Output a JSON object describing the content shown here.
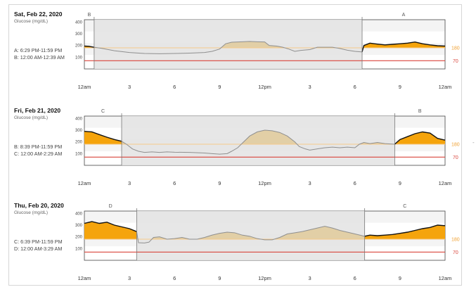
{
  "panels": [
    {
      "date": "Sat, Feb 22, 2020",
      "ylabel": "Glucose (mg/dL)",
      "info": [
        "A: 6:29 PM-11:59 PM",
        "B: 12:00 AM-12:39 AM"
      ],
      "segments": [
        {
          "label": "B",
          "start_hour": 0,
          "end_hour": 0.65,
          "shaded": false
        },
        {
          "label": "",
          "start_hour": 0.65,
          "end_hour": 18.48,
          "shaded": true
        },
        {
          "label": "A",
          "start_hour": 18.48,
          "end_hour": 24,
          "shaded": false
        }
      ],
      "points": [
        [
          0,
          195
        ],
        [
          0.3,
          193
        ],
        [
          0.65,
          185
        ],
        [
          1.2,
          175
        ],
        [
          2,
          155
        ],
        [
          3,
          140
        ],
        [
          4,
          132
        ],
        [
          5,
          130
        ],
        [
          6,
          132
        ],
        [
          7,
          135
        ],
        [
          8,
          140
        ],
        [
          8.5,
          150
        ],
        [
          9,
          170
        ],
        [
          9.4,
          215
        ],
        [
          9.8,
          228
        ],
        [
          10.5,
          232
        ],
        [
          11,
          235
        ],
        [
          11.5,
          232
        ],
        [
          12,
          230
        ],
        [
          12.3,
          200
        ],
        [
          12.8,
          195
        ],
        [
          13.2,
          185
        ],
        [
          13.6,
          170
        ],
        [
          14,
          150
        ],
        [
          14.4,
          158
        ],
        [
          15,
          165
        ],
        [
          15.5,
          185
        ],
        [
          16.5,
          185
        ],
        [
          17,
          175
        ],
        [
          17.5,
          160
        ],
        [
          18,
          150
        ],
        [
          18.48,
          145
        ],
        [
          18.6,
          200
        ],
        [
          19,
          220
        ],
        [
          19.5,
          212
        ],
        [
          20,
          205
        ],
        [
          20.5,
          210
        ],
        [
          21,
          215
        ],
        [
          21.5,
          220
        ],
        [
          22,
          230
        ],
        [
          22.5,
          215
        ],
        [
          23,
          205
        ],
        [
          23.5,
          198
        ],
        [
          24,
          195
        ]
      ]
    },
    {
      "date": "Fri, Feb 21, 2020",
      "ylabel": "Glucose (mg/dL)",
      "info": [
        "B: 8:39 PM-11:59 PM",
        "C: 12:00 AM-2:29 AM"
      ],
      "segments": [
        {
          "label": "C",
          "start_hour": 0,
          "end_hour": 2.48,
          "shaded": false
        },
        {
          "label": "",
          "start_hour": 2.48,
          "end_hour": 20.65,
          "shaded": true
        },
        {
          "label": "B",
          "start_hour": 20.65,
          "end_hour": 24,
          "shaded": false
        }
      ],
      "points": [
        [
          0,
          290
        ],
        [
          0.5,
          285
        ],
        [
          1,
          262
        ],
        [
          1.5,
          240
        ],
        [
          2,
          220
        ],
        [
          2.48,
          205
        ],
        [
          2.8,
          180
        ],
        [
          3.2,
          140
        ],
        [
          3.6,
          120
        ],
        [
          4,
          110
        ],
        [
          4.5,
          115
        ],
        [
          5,
          110
        ],
        [
          5.5,
          115
        ],
        [
          6,
          112
        ],
        [
          7,
          110
        ],
        [
          8,
          105
        ],
        [
          8.5,
          100
        ],
        [
          9,
          95
        ],
        [
          9.5,
          100
        ],
        [
          9.8,
          120
        ],
        [
          10.2,
          150
        ],
        [
          10.6,
          200
        ],
        [
          11,
          250
        ],
        [
          11.5,
          285
        ],
        [
          12,
          300
        ],
        [
          12.5,
          295
        ],
        [
          13,
          280
        ],
        [
          13.5,
          250
        ],
        [
          14,
          200
        ],
        [
          14.3,
          160
        ],
        [
          14.7,
          140
        ],
        [
          15,
          130
        ],
        [
          15.5,
          140
        ],
        [
          16,
          150
        ],
        [
          16.5,
          155
        ],
        [
          17,
          150
        ],
        [
          17.5,
          155
        ],
        [
          18,
          150
        ],
        [
          18.3,
          180
        ],
        [
          18.6,
          195
        ],
        [
          19,
          185
        ],
        [
          19.5,
          195
        ],
        [
          20,
          185
        ],
        [
          20.65,
          180
        ],
        [
          21,
          220
        ],
        [
          21.5,
          245
        ],
        [
          22,
          270
        ],
        [
          22.5,
          285
        ],
        [
          23,
          275
        ],
        [
          23.5,
          230
        ],
        [
          24,
          215
        ]
      ]
    },
    {
      "date": "Thu, Feb 20, 2020",
      "ylabel": "Glucose (mg/dL)",
      "info": [
        "C: 6:39 PM-11:59 PM",
        "D: 12:00 AM-3:29 AM"
      ],
      "segments": [
        {
          "label": "D",
          "start_hour": 0,
          "end_hour": 3.48,
          "shaded": false
        },
        {
          "label": "",
          "start_hour": 3.48,
          "end_hour": 18.65,
          "shaded": true
        },
        {
          "label": "C",
          "start_hour": 18.65,
          "end_hour": 24,
          "shaded": false
        }
      ],
      "points": [
        [
          0,
          315
        ],
        [
          0.5,
          330
        ],
        [
          1,
          315
        ],
        [
          1.5,
          325
        ],
        [
          2,
          300
        ],
        [
          2.5,
          285
        ],
        [
          3,
          270
        ],
        [
          3.48,
          245
        ],
        [
          3.6,
          150
        ],
        [
          4,
          148
        ],
        [
          4.3,
          155
        ],
        [
          4.6,
          195
        ],
        [
          5,
          200
        ],
        [
          5.5,
          180
        ],
        [
          6,
          185
        ],
        [
          6.5,
          195
        ],
        [
          7,
          180
        ],
        [
          7.5,
          180
        ],
        [
          8,
          195
        ],
        [
          8.5,
          215
        ],
        [
          9,
          230
        ],
        [
          9.5,
          240
        ],
        [
          10,
          235
        ],
        [
          10.5,
          215
        ],
        [
          11,
          205
        ],
        [
          11.5,
          185
        ],
        [
          12,
          175
        ],
        [
          12.5,
          175
        ],
        [
          13,
          195
        ],
        [
          13.5,
          225
        ],
        [
          14,
          235
        ],
        [
          14.5,
          245
        ],
        [
          15,
          260
        ],
        [
          15.5,
          275
        ],
        [
          16,
          290
        ],
        [
          16.5,
          275
        ],
        [
          17,
          255
        ],
        [
          17.5,
          240
        ],
        [
          18,
          225
        ],
        [
          18.65,
          205
        ],
        [
          19,
          215
        ],
        [
          19.5,
          210
        ],
        [
          20,
          215
        ],
        [
          20.5,
          220
        ],
        [
          21,
          230
        ],
        [
          21.5,
          240
        ],
        [
          22,
          255
        ],
        [
          22.5,
          270
        ],
        [
          23,
          280
        ],
        [
          23.5,
          300
        ],
        [
          24,
          295
        ]
      ]
    }
  ],
  "chart_data": {
    "type": "area",
    "x_unit": "hour of day",
    "xticks": [
      "12am",
      "3",
      "6",
      "9",
      "12pm",
      "3",
      "6",
      "9",
      "12am"
    ],
    "xtick_hours": [
      0,
      3,
      6,
      9,
      12,
      15,
      18,
      21,
      24
    ],
    "yticks": [
      100,
      200,
      300,
      400
    ],
    "ylim": [
      0,
      420
    ],
    "xlim": [
      0,
      24
    ],
    "target_high": 180,
    "target_low": 70,
    "target_high_label": "180",
    "target_low_label": "70",
    "colors": {
      "high_fill": "#f5a40c",
      "in_range_fill": "#e8d3a8",
      "shaded_high_fill": "#e2cfa6",
      "line": "#111111",
      "shaded_line": "#8f8f8f",
      "high_line": "#f5c989",
      "low_line": "#d9443b",
      "shade": "#e4e4e4"
    }
  },
  "edge_mark": "-"
}
